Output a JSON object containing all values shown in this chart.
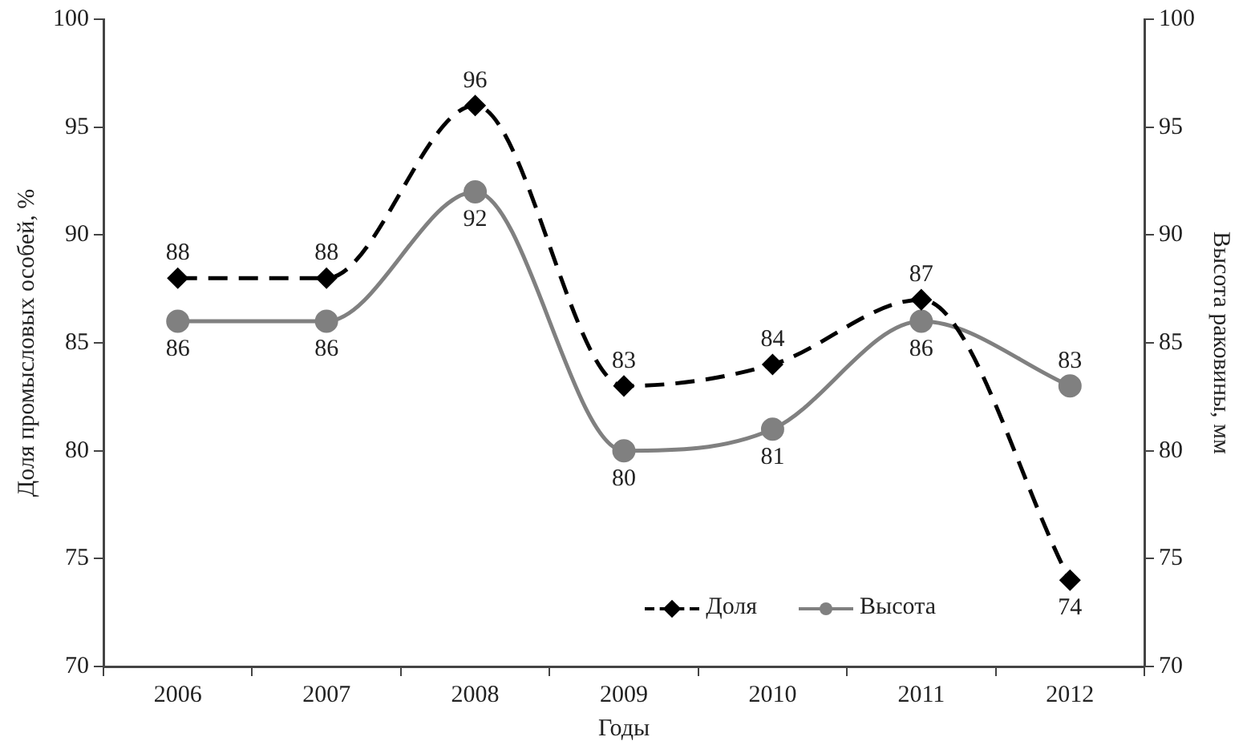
{
  "chart_data": {
    "type": "line",
    "xlabel": "Годы",
    "ylabel": "Доля промысловых особей, %",
    "y2label": "Высота раковины, мм",
    "categories": [
      "2006",
      "2007",
      "2008",
      "2009",
      "2010",
      "2011",
      "2012"
    ],
    "series": [
      {
        "name": "Доля",
        "color": "#000000",
        "values": [
          88,
          88,
          96,
          83,
          84,
          87,
          74
        ],
        "marker": "diamond",
        "line_style": "dashed"
      },
      {
        "name": "Высота",
        "color": "#808080",
        "values": [
          86,
          86,
          92,
          80,
          81,
          86,
          83
        ],
        "axis": "y2",
        "marker": "circle",
        "line_style": "solid"
      }
    ],
    "ylim": [
      70,
      100
    ],
    "yticks": [
      70,
      75,
      80,
      85,
      90,
      95,
      100
    ],
    "y2lim": [
      70,
      100
    ],
    "y2ticks": [
      70,
      75,
      80,
      85,
      90,
      95,
      100
    ],
    "grid": false,
    "legend": "bottom right",
    "data_labels": true
  }
}
